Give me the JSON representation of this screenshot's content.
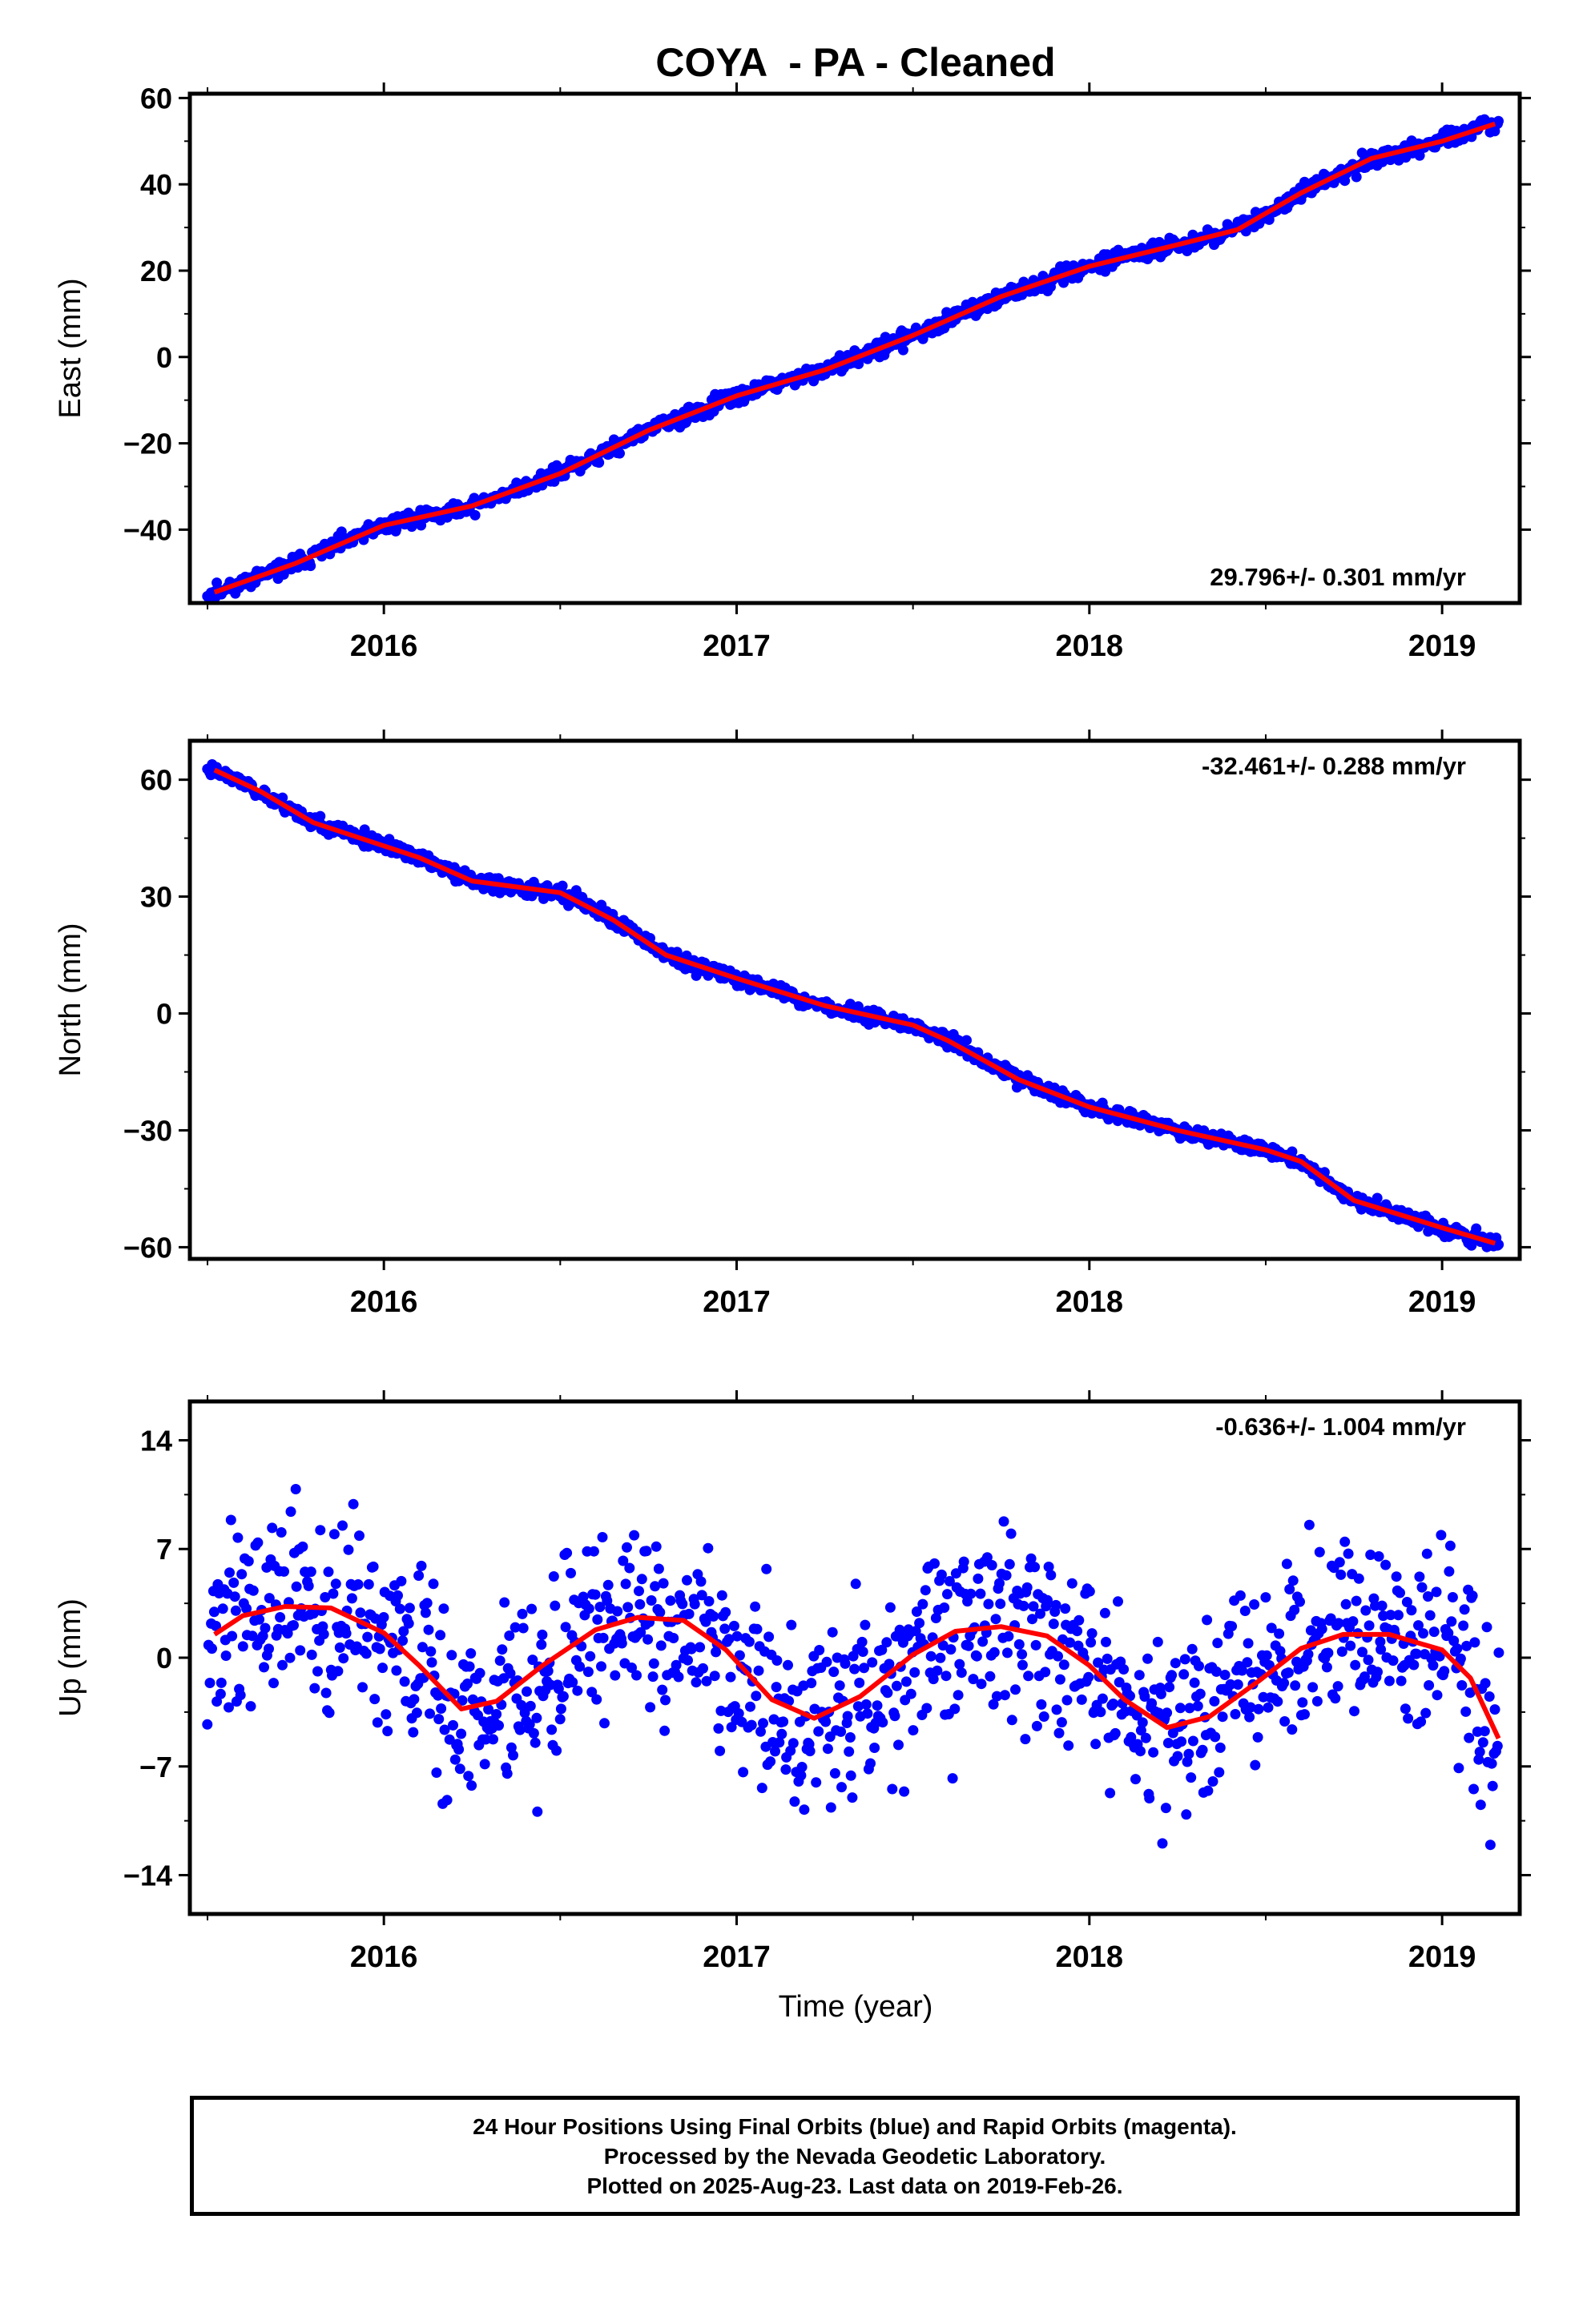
{
  "title": "COYA  - PA - Cleaned",
  "xlabel": "Time (year)",
  "footer": {
    "line1": "24 Hour Positions Using Final Orbits (blue) and Rapid Orbits (magenta).",
    "line2": "Processed by the Nevada Geodetic Laboratory.",
    "line3": "Plotted on 2025-Aug-23. Last data on 2019-Feb-26."
  },
  "colors": {
    "data": "#0000ff",
    "model": "#ff0000",
    "frame": "#000000"
  },
  "chart_data": [
    {
      "type": "scatter",
      "name": "east",
      "ylabel": "East (mm)",
      "xlim": [
        2015.45,
        2019.22
      ],
      "ylim": [
        -57,
        61
      ],
      "xticks": [
        2016,
        2017,
        2018,
        2019
      ],
      "yticks": [
        -40,
        -20,
        0,
        20,
        40,
        60
      ],
      "ytick_labels": [
        "−40",
        "−20",
        "0",
        "20",
        "40",
        "60"
      ],
      "rate_label": "29.796+/- 0.301 mm/yr",
      "rate_label_position": "bottom-right",
      "model_curve": [
        [
          2015.52,
          -54.5
        ],
        [
          2015.75,
          -47.8
        ],
        [
          2016.0,
          -39
        ],
        [
          2016.25,
          -34.5
        ],
        [
          2016.5,
          -27
        ],
        [
          2016.75,
          -17
        ],
        [
          2017.0,
          -9
        ],
        [
          2017.25,
          -3
        ],
        [
          2017.5,
          5
        ],
        [
          2017.75,
          14
        ],
        [
          2018.0,
          21
        ],
        [
          2018.25,
          26
        ],
        [
          2018.42,
          29.5
        ],
        [
          2018.6,
          38
        ],
        [
          2018.8,
          46
        ],
        [
          2019.0,
          50
        ],
        [
          2019.15,
          54
        ]
      ],
      "scatter_sd": 1.3,
      "seed": 11
    },
    {
      "type": "scatter",
      "name": "north",
      "ylabel": "North (mm)",
      "xlim": [
        2015.45,
        2019.22
      ],
      "ylim": [
        -63,
        70
      ],
      "xticks": [
        2016,
        2017,
        2018,
        2019
      ],
      "yticks": [
        -60,
        -30,
        0,
        30,
        60
      ],
      "ytick_labels": [
        "−60",
        "−30",
        "0",
        "30",
        "60"
      ],
      "rate_label": "-32.461+/- 0.288 mm/yr",
      "rate_label_position": "top-right",
      "model_curve": [
        [
          2015.52,
          62.5
        ],
        [
          2015.65,
          57
        ],
        [
          2015.8,
          49
        ],
        [
          2016.0,
          43
        ],
        [
          2016.1,
          40
        ],
        [
          2016.25,
          34
        ],
        [
          2016.5,
          31
        ],
        [
          2016.65,
          24
        ],
        [
          2016.8,
          15
        ],
        [
          2017.0,
          9
        ],
        [
          2017.25,
          2
        ],
        [
          2017.5,
          -3
        ],
        [
          2017.6,
          -7
        ],
        [
          2017.8,
          -17
        ],
        [
          2018.0,
          -24
        ],
        [
          2018.25,
          -30
        ],
        [
          2018.5,
          -35
        ],
        [
          2018.6,
          -38
        ],
        [
          2018.75,
          -48
        ],
        [
          2019.0,
          -55
        ],
        [
          2019.15,
          -59
        ]
      ],
      "scatter_sd": 1.3,
      "seed": 23
    },
    {
      "type": "scatter",
      "name": "up",
      "ylabel": "Up (mm)",
      "xlim": [
        2015.45,
        2019.22
      ],
      "ylim": [
        -16.5,
        16.5
      ],
      "xticks": [
        2016,
        2017,
        2018,
        2019
      ],
      "yticks": [
        -14,
        -7,
        0,
        7,
        14
      ],
      "ytick_labels": [
        "−14",
        "−7",
        "0",
        "7",
        "14"
      ],
      "rate_label": "-0.636+/- 1.004 mm/yr",
      "rate_label_position": "top-right",
      "model_curve": [
        [
          2015.52,
          1.5
        ],
        [
          2015.6,
          2.7
        ],
        [
          2015.72,
          3.3
        ],
        [
          2015.85,
          3.2
        ],
        [
          2016.0,
          1.6
        ],
        [
          2016.1,
          -0.5
        ],
        [
          2016.22,
          -3.3
        ],
        [
          2016.32,
          -2.8
        ],
        [
          2016.45,
          -0.5
        ],
        [
          2016.6,
          1.8
        ],
        [
          2016.72,
          2.6
        ],
        [
          2016.85,
          2.4
        ],
        [
          2016.97,
          0.5
        ],
        [
          2017.1,
          -2.7
        ],
        [
          2017.22,
          -3.9
        ],
        [
          2017.35,
          -2.5
        ],
        [
          2017.5,
          0.2
        ],
        [
          2017.62,
          1.7
        ],
        [
          2017.75,
          2.0
        ],
        [
          2017.88,
          1.4
        ],
        [
          2018.0,
          -0.5
        ],
        [
          2018.1,
          -2.7
        ],
        [
          2018.22,
          -4.5
        ],
        [
          2018.34,
          -3.8
        ],
        [
          2018.48,
          -1.5
        ],
        [
          2018.6,
          0.6
        ],
        [
          2018.72,
          1.5
        ],
        [
          2018.85,
          1.5
        ],
        [
          2019.0,
          0.5
        ],
        [
          2019.08,
          -1.3
        ],
        [
          2019.16,
          -5.2
        ]
      ],
      "scatter_sd": 4.2,
      "seed": 37
    }
  ]
}
